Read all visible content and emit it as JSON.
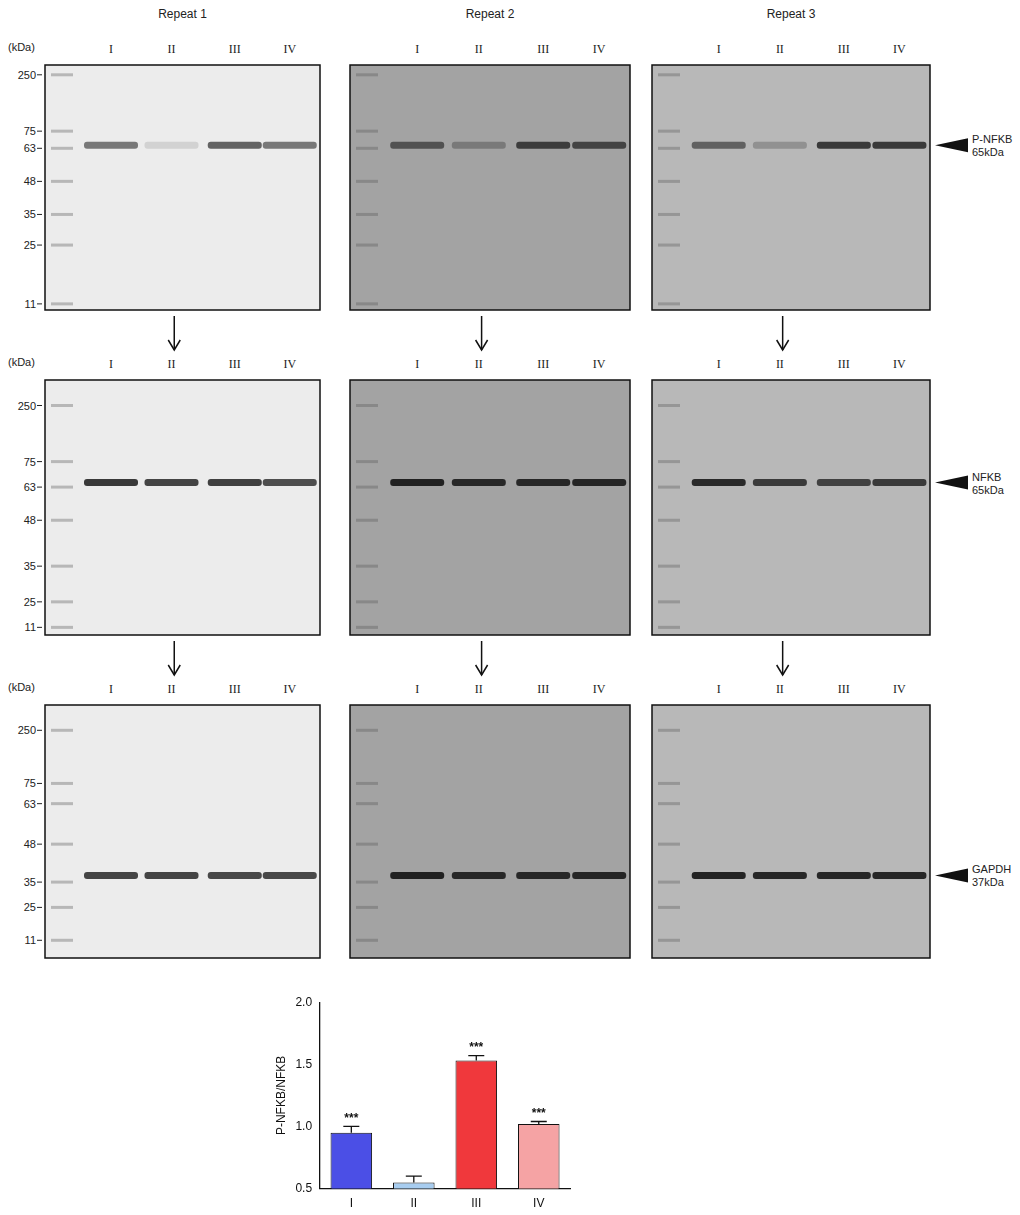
{
  "figure": {
    "repeats": [
      "Repeat 1",
      "Repeat 2",
      "Repeat 3"
    ],
    "lanes": [
      "I",
      "II",
      "III",
      "IV"
    ],
    "kda_header": "(kDa)",
    "ladder": [
      250,
      75,
      63,
      48,
      35,
      25,
      11
    ],
    "rows": [
      {
        "protein": "P-NFKB",
        "size": "65kDa",
        "kda": 65,
        "intensity": [
          [
            0.55,
            0.12,
            0.65,
            0.55
          ],
          [
            0.6,
            0.3,
            0.75,
            0.7
          ],
          [
            0.55,
            0.25,
            0.8,
            0.8
          ]
        ]
      },
      {
        "protein": "NFKB",
        "size": "65kDa",
        "kda": 65,
        "intensity": [
          [
            0.85,
            0.8,
            0.82,
            0.75
          ],
          [
            0.95,
            0.9,
            0.9,
            0.92
          ],
          [
            0.9,
            0.8,
            0.75,
            0.8
          ]
        ]
      },
      {
        "protein": "GAPDH",
        "size": "37kDa",
        "kda": 37,
        "intensity": [
          [
            0.8,
            0.8,
            0.78,
            0.78
          ],
          [
            0.95,
            0.9,
            0.9,
            0.92
          ],
          [
            0.95,
            0.92,
            0.92,
            0.92
          ]
        ]
      }
    ]
  },
  "chart_data": {
    "type": "bar",
    "categories": [
      "I",
      "II",
      "III",
      "IV"
    ],
    "values": [
      0.95,
      0.55,
      1.53,
      1.02
    ],
    "errors": [
      0.05,
      0.05,
      0.04,
      0.02
    ],
    "colors": [
      "#4b4fe6",
      "#a8cdf0",
      "#f0383c",
      "#f5a3a4"
    ],
    "annotations": [
      "***",
      null,
      "***",
      "***"
    ],
    "y_label": "P-NFKB/NFKB",
    "ylim": [
      0.5,
      2.0
    ],
    "yticks": [
      0.5,
      {
        "value": 1.0,
        "label": "1.0"
      },
      1.5,
      {
        "value": 2.0,
        "label": "2.0"
      }
    ],
    "grid": false
  }
}
